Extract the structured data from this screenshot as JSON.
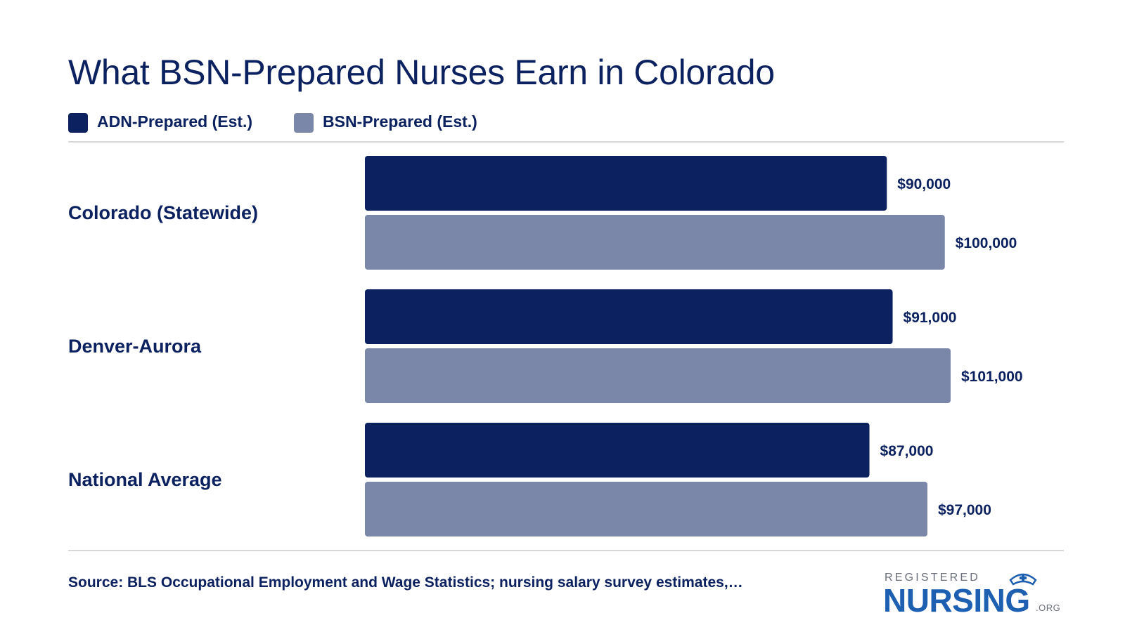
{
  "title": "What BSN-Prepared Nurses Earn in Colorado",
  "legend": [
    {
      "label": "ADN-Prepared (Est.)",
      "color": "#0c2160"
    },
    {
      "label": "BSN-Prepared (Est.)",
      "color": "#7b87a8"
    }
  ],
  "source": "Source: BLS Occupational Employment and Wage Statistics; nursing salary survey estimates,…",
  "logo": {
    "top": "REGISTERED",
    "main": "NURSING",
    "suffix": ".ORG"
  },
  "chart_data": {
    "type": "bar",
    "orientation": "horizontal",
    "title": "What BSN-Prepared Nurses Earn in Colorado",
    "categories": [
      "Colorado (Statewide)",
      "Denver-Aurora",
      "National Average"
    ],
    "series": [
      {
        "name": "ADN-Prepared (Est.)",
        "color": "#0c2160",
        "values": [
          90000,
          91000,
          87000
        ],
        "labels": [
          "$90,000",
          "$91,000",
          "$87,000"
        ]
      },
      {
        "name": "BSN-Prepared (Est.)",
        "color": "#7b87a8",
        "values": [
          100000,
          101000,
          97000
        ],
        "labels": [
          "$100,000",
          "$101,000",
          "$97,000"
        ]
      }
    ],
    "xlim": [
      0,
      101000
    ],
    "grid": false,
    "legend_position": "top-left"
  }
}
